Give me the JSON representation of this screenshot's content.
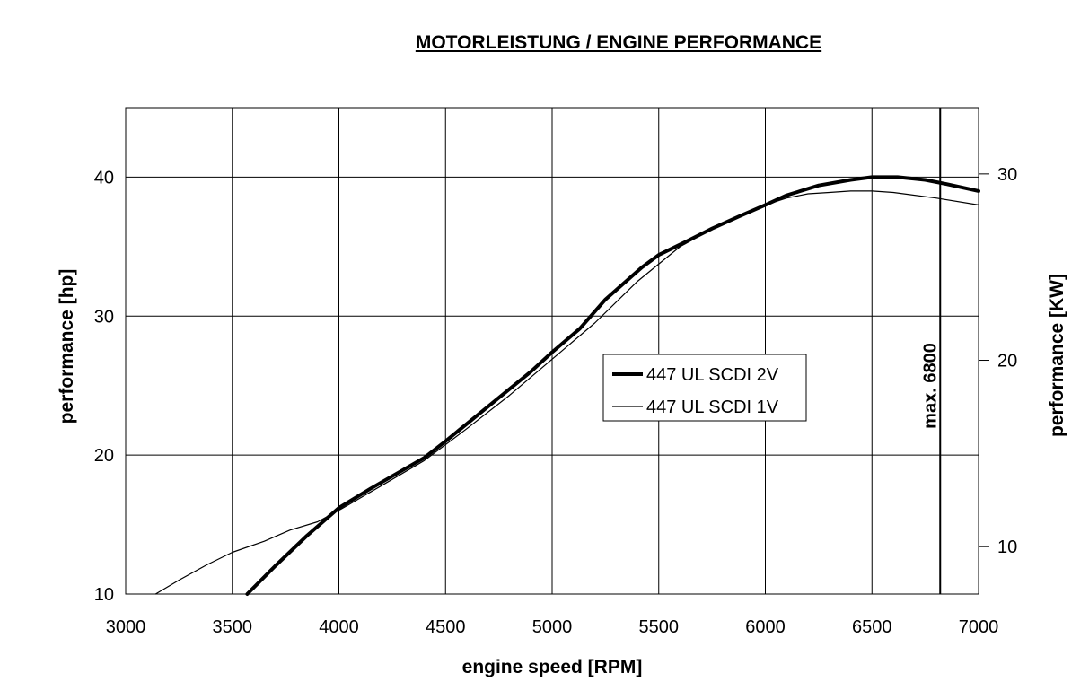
{
  "chart_data": {
    "type": "line",
    "title": "MOTORLEISTUNG / ENGINE PERFORMANCE",
    "xlabel": "engine speed [RPM]",
    "ylabel": "performance [hp]",
    "y2label": "performance [KW]",
    "xlim": [
      3000,
      7000
    ],
    "ylim": [
      10,
      45
    ],
    "xticks": [
      3000,
      3500,
      4000,
      4500,
      5000,
      5500,
      6000,
      6500,
      7000
    ],
    "yticks": [
      10,
      20,
      30,
      40
    ],
    "y2ticks": [
      10,
      20,
      30
    ],
    "grid": true,
    "legend_position": "center-right",
    "annotation": {
      "text": "max. 6800",
      "x": 6820
    },
    "series": [
      {
        "name": "447 UL SCDI 2V",
        "style": "thick",
        "x": [
          3570,
          3700,
          3850,
          4000,
          4150,
          4400,
          4500,
          4700,
          4900,
          5000,
          5130,
          5250,
          5420,
          5500,
          5620,
          5750,
          5880,
          6000,
          6100,
          6250,
          6400,
          6500,
          6620,
          6750,
          6850,
          7000
        ],
        "y": [
          10,
          12,
          14.2,
          16.2,
          17.6,
          19.8,
          21,
          23.5,
          26,
          27.4,
          29.1,
          31.2,
          33.5,
          34.4,
          35.3,
          36.3,
          37.2,
          38,
          38.7,
          39.4,
          39.8,
          40,
          40,
          39.8,
          39.5,
          39
        ]
      },
      {
        "name": "447 UL SCDI 1V",
        "style": "thin",
        "x": [
          3140,
          3250,
          3380,
          3500,
          3650,
          3770,
          3900,
          4020,
          4200,
          4400,
          4600,
          4800,
          5000,
          5200,
          5400,
          5600,
          5800,
          6000,
          6100,
          6200,
          6300,
          6400,
          6500,
          6600,
          6800,
          7000
        ],
        "y": [
          10,
          11,
          12.1,
          13,
          13.8,
          14.6,
          15.2,
          16.2,
          17.8,
          19.6,
          21.9,
          24.3,
          26.9,
          29.5,
          32.5,
          35,
          36.7,
          38,
          38.5,
          38.8,
          38.9,
          39,
          39,
          38.9,
          38.5,
          38
        ]
      }
    ]
  }
}
